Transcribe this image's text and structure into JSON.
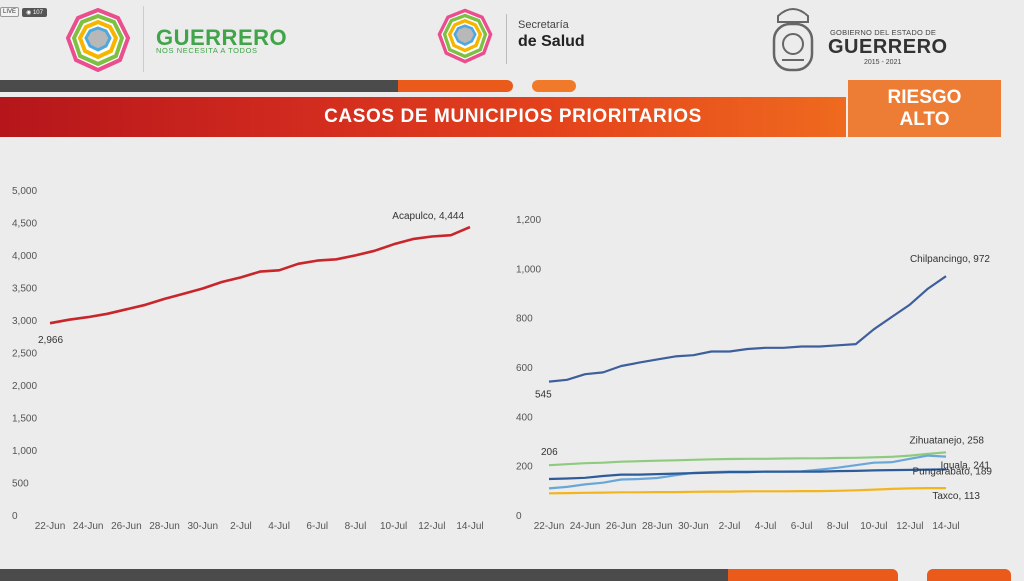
{
  "live_badge": {
    "tag": "LIVE",
    "viewers": "107"
  },
  "header": {
    "brand_title": "GUERRERO",
    "brand_sub": "NOS NECESITA A TODOS",
    "secretaria_small": "Secretaría",
    "secretaria_big": "de Salud",
    "gobierno_line1": "GOBIERNO DEL ESTADO DE",
    "gobierno_line2": "GUERRERO",
    "gobierno_years": "2015 - 2021"
  },
  "title": "CASOS DE MUNICIPIOS PRIORITARIOS",
  "risk": {
    "line1": "RIESGO",
    "line2": "ALTO"
  },
  "colors": {
    "acapulco": "#c8262b",
    "chilpancingo": "#3e5f9c",
    "zihuatanejo": "#8ecb7f",
    "iguala": "#6aa7d9",
    "pungarabato": "#2e5c9a",
    "taxco": "#f3b51e",
    "accent_orange": "#ea5a1b"
  },
  "chart_data": [
    {
      "type": "line",
      "categories": [
        "22-Jun",
        "23-Jun",
        "24-Jun",
        "25-Jun",
        "26-Jun",
        "27-Jun",
        "28-Jun",
        "29-Jun",
        "30-Jun",
        "1-Jul",
        "2-Jul",
        "3-Jul",
        "4-Jul",
        "5-Jul",
        "6-Jul",
        "7-Jul",
        "8-Jul",
        "9-Jul",
        "10-Jul",
        "11-Jul",
        "12-Jul",
        "13-Jul",
        "14-Jul"
      ],
      "tick_labels": [
        "22-Jun",
        "24-Jun",
        "26-Jun",
        "28-Jun",
        "30-Jun",
        "2-Jul",
        "4-Jul",
        "6-Jul",
        "8-Jul",
        "10-Jul",
        "12-Jul",
        "14-Jul"
      ],
      "ylim": [
        0,
        5000
      ],
      "yticks": [
        "0",
        "500",
        "1,000",
        "1,500",
        "2,000",
        "2,500",
        "3,000",
        "3,500",
        "4,000",
        "4,500",
        "5,000"
      ],
      "series": [
        {
          "name": "Acapulco",
          "color_key": "acapulco",
          "values": [
            2966,
            3020,
            3060,
            3110,
            3180,
            3250,
            3340,
            3420,
            3500,
            3600,
            3670,
            3760,
            3780,
            3880,
            3930,
            3950,
            4010,
            4080,
            4180,
            4260,
            4300,
            4320,
            4444
          ],
          "start_label": "2,966",
          "end_label": "Acapulco, 4,444"
        }
      ]
    },
    {
      "type": "line",
      "categories": [
        "22-Jun",
        "23-Jun",
        "24-Jun",
        "25-Jun",
        "26-Jun",
        "27-Jun",
        "28-Jun",
        "29-Jun",
        "30-Jun",
        "1-Jul",
        "2-Jul",
        "3-Jul",
        "4-Jul",
        "5-Jul",
        "6-Jul",
        "7-Jul",
        "8-Jul",
        "9-Jul",
        "10-Jul",
        "11-Jul",
        "12-Jul",
        "13-Jul",
        "14-Jul"
      ],
      "tick_labels": [
        "22-Jun",
        "24-Jun",
        "26-Jun",
        "28-Jun",
        "30-Jun",
        "2-Jul",
        "4-Jul",
        "6-Jul",
        "8-Jul",
        "10-Jul",
        "12-Jul",
        "14-Jul"
      ],
      "ylim": [
        0,
        1200
      ],
      "yticks": [
        "0",
        "200",
        "400",
        "600",
        "800",
        "1,000",
        "1,200"
      ],
      "series": [
        {
          "name": "Chilpancingo",
          "color_key": "chilpancingo",
          "values": [
            545,
            552,
            575,
            582,
            608,
            622,
            635,
            647,
            652,
            667,
            667,
            677,
            682,
            682,
            687,
            687,
            692,
            697,
            757,
            807,
            857,
            922,
            972
          ],
          "start_label": "545",
          "end_label": "Chilpancingo, 972"
        },
        {
          "name": "Zihuatanejo",
          "color_key": "zihuatanejo",
          "values": [
            206,
            210,
            214,
            216,
            220,
            222,
            224,
            226,
            228,
            230,
            231,
            232,
            232,
            233,
            234,
            234,
            235,
            236,
            238,
            240,
            245,
            252,
            258
          ],
          "start_label": "206",
          "end_label": "Zihuatanejo, 258"
        },
        {
          "name": "Iguala",
          "color_key": "iguala",
          "values": [
            112,
            118,
            128,
            135,
            148,
            150,
            154,
            165,
            175,
            178,
            180,
            180,
            180,
            180,
            181,
            188,
            196,
            206,
            216,
            218,
            232,
            245,
            241
          ],
          "end_label": "Iguala, 241"
        },
        {
          "name": "Pungarabato",
          "color_key": "pungarabato",
          "values": [
            150,
            152,
            155,
            162,
            168,
            168,
            170,
            172,
            174,
            176,
            178,
            178,
            180,
            180,
            180,
            180,
            182,
            183,
            185,
            186,
            187,
            188,
            189
          ],
          "end_label": "Pungarabato, 189"
        },
        {
          "name": "Taxco",
          "color_key": "taxco",
          "values": [
            92,
            93,
            94,
            95,
            96,
            96,
            97,
            97,
            98,
            99,
            99,
            100,
            100,
            100,
            101,
            101,
            102,
            104,
            107,
            110,
            112,
            113,
            113
          ],
          "end_label": "Taxco, 113"
        }
      ]
    }
  ]
}
